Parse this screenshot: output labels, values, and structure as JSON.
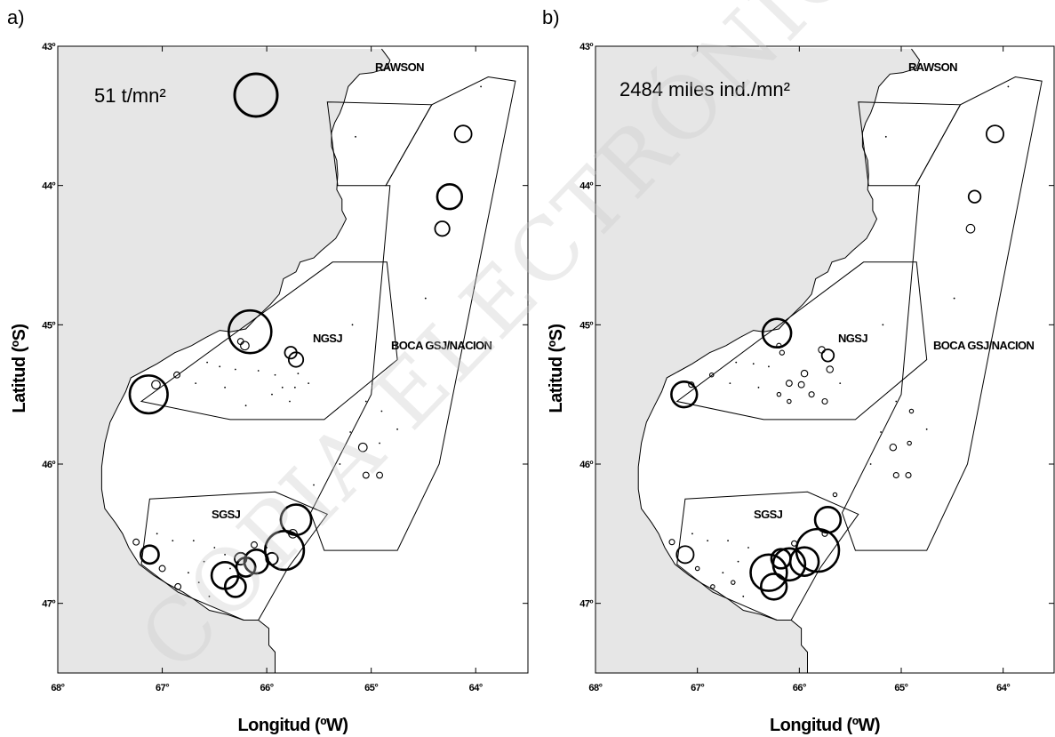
{
  "watermark": "COPIA ELECTRÓNICA LIMITADA",
  "chart_data": [
    {
      "type": "scatter",
      "panel_label": "a)",
      "xlabel": "Longitud (ºW)",
      "ylabel": "Latitud (ºS)",
      "xlim": [
        68,
        63.5
      ],
      "ylim": [
        47.5,
        43
      ],
      "xticks": [
        "68°",
        "67°",
        "66°",
        "65°",
        "64°"
      ],
      "yticks": [
        "43º",
        "44º",
        "45º",
        "46º",
        "47º"
      ],
      "grid": false,
      "legend": {
        "label": "51 t/mn²",
        "value": 51
      },
      "zones": [
        "RAWSON",
        "NGSJ",
        "BOCA GSJ/NACION",
        "SGSJ"
      ],
      "points": [
        {
          "lon": 64.12,
          "lat": 43.63,
          "v": 8
        },
        {
          "lon": 64.25,
          "lat": 44.08,
          "v": 17
        },
        {
          "lon": 64.32,
          "lat": 44.31,
          "v": 6
        },
        {
          "lon": 63.95,
          "lat": 43.29,
          "v": 0
        },
        {
          "lon": 65.15,
          "lat": 43.65,
          "v": 0
        },
        {
          "lon": 64.48,
          "lat": 44.81,
          "v": 0
        },
        {
          "lon": 66.16,
          "lat": 45.05,
          "v": 51
        },
        {
          "lon": 66.21,
          "lat": 45.15,
          "v": 2
        },
        {
          "lon": 66.25,
          "lat": 45.12,
          "v": 1
        },
        {
          "lon": 65.77,
          "lat": 45.2,
          "v": 4
        },
        {
          "lon": 65.72,
          "lat": 45.25,
          "v": 6
        },
        {
          "lon": 66.07,
          "lat": 45.18,
          "v": 0
        },
        {
          "lon": 67.13,
          "lat": 45.5,
          "v": 40
        },
        {
          "lon": 67.06,
          "lat": 45.43,
          "v": 2
        },
        {
          "lon": 66.86,
          "lat": 45.36,
          "v": 1
        },
        {
          "lon": 66.57,
          "lat": 45.27,
          "v": 0
        },
        {
          "lon": 66.45,
          "lat": 45.3,
          "v": 0
        },
        {
          "lon": 66.3,
          "lat": 45.32,
          "v": 0
        },
        {
          "lon": 66.08,
          "lat": 45.33,
          "v": 0
        },
        {
          "lon": 65.92,
          "lat": 45.36,
          "v": 0
        },
        {
          "lon": 65.7,
          "lat": 45.35,
          "v": 0
        },
        {
          "lon": 66.68,
          "lat": 45.42,
          "v": 0
        },
        {
          "lon": 66.4,
          "lat": 45.45,
          "v": 0
        },
        {
          "lon": 65.85,
          "lat": 45.45,
          "v": 0
        },
        {
          "lon": 65.95,
          "lat": 45.5,
          "v": 0
        },
        {
          "lon": 65.78,
          "lat": 45.55,
          "v": 0
        },
        {
          "lon": 66.2,
          "lat": 45.58,
          "v": 0
        },
        {
          "lon": 65.6,
          "lat": 45.42,
          "v": 0
        },
        {
          "lon": 65.73,
          "lat": 45.45,
          "v": 0
        },
        {
          "lon": 65.08,
          "lat": 45.88,
          "v": 2
        },
        {
          "lon": 65.05,
          "lat": 46.08,
          "v": 1
        },
        {
          "lon": 64.92,
          "lat": 46.08,
          "v": 1
        },
        {
          "lon": 64.9,
          "lat": 45.62,
          "v": 0
        },
        {
          "lon": 64.75,
          "lat": 45.75,
          "v": 0
        },
        {
          "lon": 65.2,
          "lat": 45.77,
          "v": 0
        },
        {
          "lon": 64.92,
          "lat": 45.85,
          "v": 0
        },
        {
          "lon": 65.05,
          "lat": 45.55,
          "v": 0
        },
        {
          "lon": 65.3,
          "lat": 46.0,
          "v": 0
        },
        {
          "lon": 65.55,
          "lat": 46.15,
          "v": 0
        },
        {
          "lon": 65.18,
          "lat": 45.0,
          "v": 0
        },
        {
          "lon": 65.72,
          "lat": 46.4,
          "v": 26
        },
        {
          "lon": 65.83,
          "lat": 46.62,
          "v": 42
        },
        {
          "lon": 65.95,
          "lat": 46.68,
          "v": 4
        },
        {
          "lon": 66.1,
          "lat": 46.7,
          "v": 16
        },
        {
          "lon": 66.2,
          "lat": 46.74,
          "v": 10
        },
        {
          "lon": 66.25,
          "lat": 46.68,
          "v": 4
        },
        {
          "lon": 66.4,
          "lat": 46.8,
          "v": 20
        },
        {
          "lon": 66.3,
          "lat": 46.88,
          "v": 12
        },
        {
          "lon": 67.12,
          "lat": 46.65,
          "v": 9
        },
        {
          "lon": 66.12,
          "lat": 46.58,
          "v": 1
        },
        {
          "lon": 65.75,
          "lat": 46.5,
          "v": 2
        },
        {
          "lon": 67.25,
          "lat": 46.56,
          "v": 1
        },
        {
          "lon": 66.85,
          "lat": 46.88,
          "v": 1
        },
        {
          "lon": 67.0,
          "lat": 46.75,
          "v": 1
        },
        {
          "lon": 66.65,
          "lat": 46.85,
          "v": 0
        },
        {
          "lon": 66.6,
          "lat": 46.7,
          "v": 0
        },
        {
          "lon": 66.9,
          "lat": 46.55,
          "v": 0
        },
        {
          "lon": 66.7,
          "lat": 46.55,
          "v": 0
        },
        {
          "lon": 66.5,
          "lat": 46.6,
          "v": 0
        },
        {
          "lon": 66.4,
          "lat": 46.65,
          "v": 0
        },
        {
          "lon": 67.05,
          "lat": 46.5,
          "v": 0
        },
        {
          "lon": 66.75,
          "lat": 46.78,
          "v": 0
        },
        {
          "lon": 66.35,
          "lat": 46.75,
          "v": 0
        },
        {
          "lon": 66.55,
          "lat": 46.95,
          "v": 0
        },
        {
          "lon": 65.65,
          "lat": 46.3,
          "v": 0
        },
        {
          "lon": 66.0,
          "lat": 46.6,
          "v": 0
        }
      ]
    },
    {
      "type": "scatter",
      "panel_label": "b)",
      "xlabel": "Longitud (ºW)",
      "ylabel": "Latitud (ºS)",
      "xlim": [
        68,
        63.5
      ],
      "ylim": [
        47.5,
        43
      ],
      "xticks": [
        "68°",
        "67°",
        "66°",
        "65°",
        "64°"
      ],
      "yticks": [
        "43º",
        "44º",
        "45º",
        "46º",
        "47º"
      ],
      "grid": false,
      "legend": {
        "label": "2484 miles ind./mn²",
        "value": 2484
      },
      "zones": [
        "RAWSON",
        "NGSJ",
        "BOCA GSJ/NACION",
        "SGSJ"
      ],
      "points": [
        {
          "lon": 64.08,
          "lat": 43.63,
          "v": 400
        },
        {
          "lon": 64.28,
          "lat": 44.08,
          "v": 200
        },
        {
          "lon": 64.32,
          "lat": 44.31,
          "v": 100
        },
        {
          "lon": 63.95,
          "lat": 43.29,
          "v": 0
        },
        {
          "lon": 65.15,
          "lat": 43.65,
          "v": 0
        },
        {
          "lon": 64.48,
          "lat": 44.81,
          "v": 0
        },
        {
          "lon": 66.22,
          "lat": 45.06,
          "v": 1100
        },
        {
          "lon": 66.2,
          "lat": 45.15,
          "v": 30
        },
        {
          "lon": 66.17,
          "lat": 45.2,
          "v": 30
        },
        {
          "lon": 65.72,
          "lat": 45.22,
          "v": 200
        },
        {
          "lon": 65.78,
          "lat": 45.18,
          "v": 60
        },
        {
          "lon": 67.13,
          "lat": 45.5,
          "v": 900
        },
        {
          "lon": 67.06,
          "lat": 45.43,
          "v": 40
        },
        {
          "lon": 66.86,
          "lat": 45.36,
          "v": 20
        },
        {
          "lon": 65.95,
          "lat": 45.35,
          "v": 60
        },
        {
          "lon": 65.7,
          "lat": 45.32,
          "v": 60
        },
        {
          "lon": 66.1,
          "lat": 45.42,
          "v": 50
        },
        {
          "lon": 65.98,
          "lat": 45.43,
          "v": 50
        },
        {
          "lon": 65.88,
          "lat": 45.5,
          "v": 40
        },
        {
          "lon": 65.75,
          "lat": 45.55,
          "v": 40
        },
        {
          "lon": 66.1,
          "lat": 45.55,
          "v": 20
        },
        {
          "lon": 66.2,
          "lat": 45.5,
          "v": 10
        },
        {
          "lon": 66.45,
          "lat": 45.28,
          "v": 0
        },
        {
          "lon": 66.3,
          "lat": 45.3,
          "v": 0
        },
        {
          "lon": 66.62,
          "lat": 45.27,
          "v": 0
        },
        {
          "lon": 66.68,
          "lat": 45.42,
          "v": 0
        },
        {
          "lon": 66.4,
          "lat": 45.45,
          "v": 0
        },
        {
          "lon": 65.6,
          "lat": 45.42,
          "v": 0
        },
        {
          "lon": 65.08,
          "lat": 45.88,
          "v": 60
        },
        {
          "lon": 65.05,
          "lat": 46.08,
          "v": 40
        },
        {
          "lon": 64.93,
          "lat": 46.08,
          "v": 40
        },
        {
          "lon": 64.9,
          "lat": 45.62,
          "v": 10
        },
        {
          "lon": 64.75,
          "lat": 45.75,
          "v": 0
        },
        {
          "lon": 65.2,
          "lat": 45.77,
          "v": 0
        },
        {
          "lon": 64.92,
          "lat": 45.85,
          "v": 10
        },
        {
          "lon": 65.05,
          "lat": 45.55,
          "v": 0
        },
        {
          "lon": 65.3,
          "lat": 46.0,
          "v": 0
        },
        {
          "lon": 65.18,
          "lat": 45.0,
          "v": 0
        },
        {
          "lon": 65.72,
          "lat": 46.4,
          "v": 900
        },
        {
          "lon": 65.82,
          "lat": 46.62,
          "v": 2484
        },
        {
          "lon": 65.95,
          "lat": 46.7,
          "v": 1100
        },
        {
          "lon": 66.1,
          "lat": 46.72,
          "v": 1400
        },
        {
          "lon": 66.18,
          "lat": 46.68,
          "v": 500
        },
        {
          "lon": 66.3,
          "lat": 46.78,
          "v": 1800
        },
        {
          "lon": 66.25,
          "lat": 46.88,
          "v": 900
        },
        {
          "lon": 67.12,
          "lat": 46.65,
          "v": 400
        },
        {
          "lon": 67.25,
          "lat": 46.56,
          "v": 40
        },
        {
          "lon": 66.05,
          "lat": 46.57,
          "v": 40
        },
        {
          "lon": 65.75,
          "lat": 46.5,
          "v": 40
        },
        {
          "lon": 65.65,
          "lat": 46.22,
          "v": 20
        },
        {
          "lon": 66.85,
          "lat": 46.88,
          "v": 20
        },
        {
          "lon": 67.0,
          "lat": 46.75,
          "v": 20
        },
        {
          "lon": 66.65,
          "lat": 46.85,
          "v": 10
        },
        {
          "lon": 66.6,
          "lat": 46.7,
          "v": 0
        },
        {
          "lon": 66.9,
          "lat": 46.55,
          "v": 0
        },
        {
          "lon": 66.7,
          "lat": 46.55,
          "v": 0
        },
        {
          "lon": 66.5,
          "lat": 46.6,
          "v": 0
        },
        {
          "lon": 67.05,
          "lat": 46.5,
          "v": 0
        },
        {
          "lon": 66.75,
          "lat": 46.78,
          "v": 0
        },
        {
          "lon": 66.55,
          "lat": 46.95,
          "v": 0
        }
      ]
    }
  ]
}
